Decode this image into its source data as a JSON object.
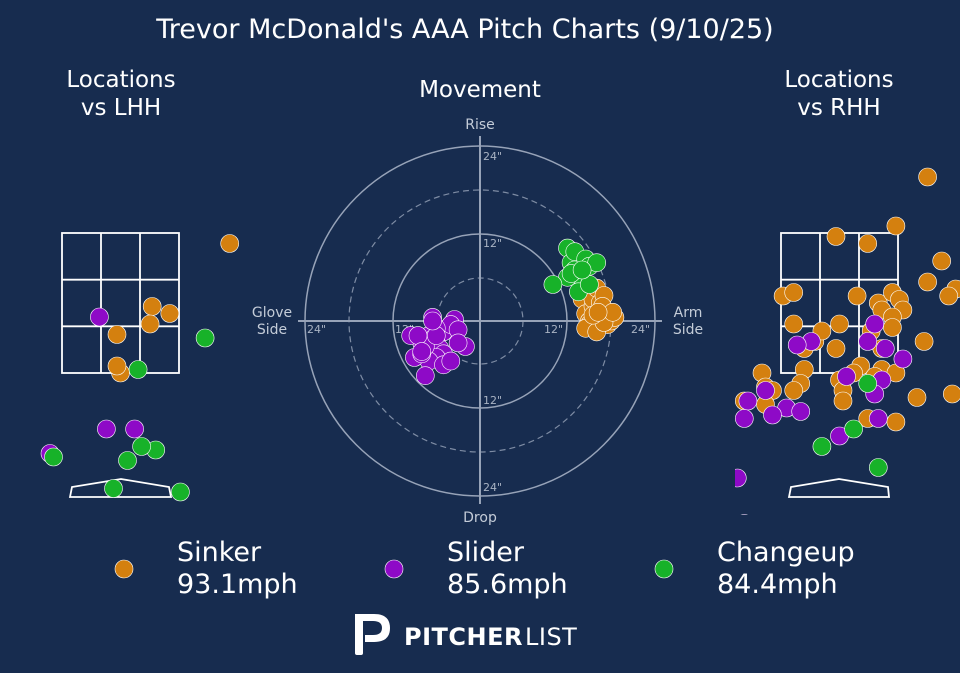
{
  "title": "Trevor McDonald's AAA Pitch Charts (9/10/25)",
  "panels": {
    "lhh_title": [
      "Locations",
      "vs LHH"
    ],
    "movement_title": "Movement",
    "rhh_title": [
      "Locations",
      "vs RHH"
    ]
  },
  "movement_labels": {
    "rise": "Rise",
    "drop": "Drop",
    "glove_side": [
      "Glove",
      "Side"
    ],
    "arm_side": [
      "Arm",
      "Side"
    ],
    "ring_labels": [
      "12\"",
      "24\""
    ]
  },
  "colors": {
    "background": "#172c4f",
    "sinker": "#d4800f",
    "slider": "#8e0ac7",
    "changeup": "#17b229",
    "grid": "#8a97ad"
  },
  "legend": [
    {
      "pitch": "Sinker",
      "velo": "93.1mph",
      "color_key": "sinker"
    },
    {
      "pitch": "Slider",
      "velo": "85.6mph",
      "color_key": "slider"
    },
    {
      "pitch": "Changeup",
      "velo": "84.4mph",
      "color_key": "changeup"
    }
  ],
  "logo": {
    "bold": "PITCHER",
    "light": "LIST"
  },
  "chart_data": [
    {
      "type": "scatter",
      "title": "Locations vs LHH",
      "x_unit": "ft (catcher view, plate_x)",
      "y_unit": "ft (plate_z)",
      "series": [
        {
          "name": "Sinker",
          "points": [
            [
              1.55,
              3.35
            ],
            [
              0.7,
              2.35
            ],
            [
              0.45,
              2.45
            ],
            [
              0.42,
              2.2
            ],
            [
              -0.05,
              2.05
            ],
            [
              0.0,
              1.5
            ],
            [
              -0.05,
              1.6
            ]
          ]
        },
        {
          "name": "Slider",
          "points": [
            [
              -0.3,
              2.3
            ],
            [
              -0.2,
              0.7
            ],
            [
              0.2,
              0.7
            ],
            [
              -1.0,
              0.35
            ]
          ]
        },
        {
          "name": "Changeup",
          "points": [
            [
              1.2,
              2.0
            ],
            [
              0.25,
              1.55
            ],
            [
              0.5,
              0.4
            ],
            [
              0.3,
              0.45
            ],
            [
              0.1,
              0.25
            ],
            [
              -0.95,
              0.3
            ],
            [
              -0.1,
              -0.15
            ],
            [
              0.85,
              -0.2
            ]
          ]
        }
      ]
    },
    {
      "type": "scatter",
      "title": "Movement",
      "x_unit": "inches (arm side positive)",
      "y_unit": "inches (rise positive)",
      "rings": [
        6,
        12,
        18,
        24
      ],
      "series": [
        {
          "name": "Sinker",
          "points": [
            [
              14,
              3
            ],
            [
              14.5,
              1
            ],
            [
              15,
              0
            ],
            [
              15.5,
              2
            ],
            [
              16,
              -1
            ],
            [
              16.5,
              0.5
            ],
            [
              17,
              1.5
            ],
            [
              17.5,
              -0.5
            ],
            [
              18,
              0
            ],
            [
              15,
              -0.5
            ],
            [
              15.5,
              3
            ],
            [
              16,
              4.5
            ],
            [
              16.5,
              2.5
            ],
            [
              17,
              3.5
            ],
            [
              18.5,
              0.5
            ],
            [
              14.5,
              -1
            ],
            [
              16,
              -1.5
            ],
            [
              17,
              -0.2
            ],
            [
              15.5,
              0.8
            ],
            [
              16.8,
              2
            ],
            [
              18.2,
              1.2
            ],
            [
              16.2,
              1.2
            ]
          ]
        },
        {
          "name": "Slider",
          "points": [
            [
              -3.5,
              0.2
            ],
            [
              -5,
              -1.5
            ],
            [
              -4,
              -0.5
            ],
            [
              -2,
              -3.5
            ],
            [
              -3,
              -1.2
            ],
            [
              -6,
              -1
            ],
            [
              -6.5,
              0.5
            ],
            [
              -7,
              -2
            ],
            [
              -6,
              -3
            ],
            [
              -6.5,
              -2.5
            ],
            [
              -5.5,
              -3.8
            ],
            [
              -5,
              -4.5
            ],
            [
              -6,
              -5
            ],
            [
              -7,
              -5.5
            ],
            [
              -5,
              -6
            ],
            [
              -4,
              -5.5
            ],
            [
              -8,
              -3
            ],
            [
              -9,
              -5
            ],
            [
              -7.5,
              -3.5
            ],
            [
              -9.5,
              -2
            ],
            [
              -8.5,
              -2
            ],
            [
              -8,
              -4.5
            ],
            [
              -6,
              -2
            ],
            [
              -3,
              -3
            ],
            [
              -7.5,
              -7.5
            ],
            [
              -8,
              -4.2
            ],
            [
              -6.5,
              0
            ]
          ]
        },
        {
          "name": "Changeup",
          "points": [
            [
              12,
              10
            ],
            [
              12.5,
              8
            ],
            [
              13,
              7
            ],
            [
              13.5,
              6
            ],
            [
              14,
              5
            ],
            [
              12,
              6
            ],
            [
              13,
              9.5
            ],
            [
              14.5,
              8.5
            ],
            [
              15,
              7.5
            ],
            [
              13.5,
              4
            ],
            [
              15,
              5
            ],
            [
              12.5,
              6.5
            ],
            [
              10,
              5
            ],
            [
              16,
              8
            ],
            [
              14,
              7
            ]
          ]
        }
      ]
    },
    {
      "type": "scatter",
      "title": "Locations vs RHH",
      "x_unit": "ft (catcher view, plate_x)",
      "y_unit": "ft (plate_z)",
      "series": [
        {
          "name": "Sinker",
          "points": [
            [
              1.25,
              4.3
            ],
            [
              0.8,
              3.6
            ],
            [
              -0.05,
              3.45
            ],
            [
              0.4,
              3.35
            ],
            [
              1.45,
              3.1
            ],
            [
              1.25,
              2.8
            ],
            [
              1.65,
              2.7
            ],
            [
              1.55,
              2.6
            ],
            [
              2.0,
              2.6
            ],
            [
              -0.8,
              2.6
            ],
            [
              -0.65,
              2.65
            ],
            [
              0.25,
              2.6
            ],
            [
              0.55,
              2.5
            ],
            [
              0.75,
              2.65
            ],
            [
              0.85,
              2.55
            ],
            [
              0.9,
              2.4
            ],
            [
              0.6,
              2.4
            ],
            [
              0.75,
              2.3
            ],
            [
              0.75,
              2.15
            ],
            [
              0.45,
              2.1
            ],
            [
              0.0,
              2.2
            ],
            [
              -0.65,
              2.2
            ],
            [
              -0.35,
              1.95
            ],
            [
              -0.25,
              2.1
            ],
            [
              1.2,
              1.95
            ],
            [
              0.6,
              1.85
            ],
            [
              -0.05,
              1.85
            ],
            [
              -0.5,
              1.85
            ],
            [
              -0.5,
              1.55
            ],
            [
              -1.1,
              1.5
            ],
            [
              0.3,
              1.6
            ],
            [
              0.2,
              1.5
            ],
            [
              -1.05,
              1.3
            ],
            [
              -0.55,
              1.35
            ],
            [
              -0.65,
              1.25
            ],
            [
              -0.95,
              1.25
            ],
            [
              0.6,
              1.55
            ],
            [
              0.0,
              1.4
            ],
            [
              0.05,
              1.25
            ],
            [
              1.1,
              1.15
            ],
            [
              0.8,
              1.5
            ],
            [
              1.6,
              1.2
            ],
            [
              0.5,
              1.45
            ],
            [
              0.8,
              0.8
            ],
            [
              0.4,
              0.85
            ],
            [
              0.05,
              1.1
            ],
            [
              -1.35,
              1.1
            ],
            [
              -1.05,
              1.05
            ]
          ]
        },
        {
          "name": "Slider",
          "points": [
            [
              0.6,
              1.4
            ],
            [
              0.5,
              1.2
            ],
            [
              -1.3,
              1.1
            ],
            [
              -0.75,
              1.0
            ],
            [
              -1.05,
              1.25
            ],
            [
              -0.4,
              1.95
            ],
            [
              -0.6,
              1.9
            ],
            [
              0.4,
              1.95
            ],
            [
              0.65,
              1.85
            ],
            [
              -0.95,
              0.9
            ],
            [
              -0.55,
              0.95
            ],
            [
              -1.35,
              0.85
            ],
            [
              0.55,
              0.85
            ],
            [
              0.0,
              0.6
            ],
            [
              0.5,
              2.2
            ],
            [
              0.9,
              1.7
            ],
            [
              0.1,
              1.45
            ],
            [
              -1.45,
              0.0
            ],
            [
              -1.35,
              -0.65
            ],
            [
              -1.45,
              -0.9
            ]
          ]
        },
        {
          "name": "Changeup",
          "points": [
            [
              0.4,
              1.35
            ],
            [
              0.2,
              0.7
            ],
            [
              -0.25,
              0.45
            ],
            [
              0.55,
              0.15
            ]
          ]
        }
      ]
    }
  ]
}
